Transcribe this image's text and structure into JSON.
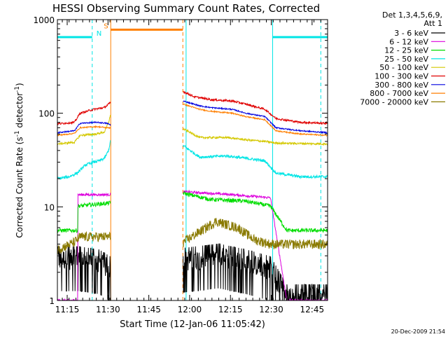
{
  "chart_data": {
    "type": "line",
    "title": "HESSI Observing Summary Count Rates, Corrected",
    "xlabel": "Start Time (12-Jan-06 11:05:42)",
    "ylabel_main": "Corrected Count Rate (s",
    "ylabel_sup1": "-1",
    "ylabel_mid": " detector",
    "ylabel_sup2": "-1",
    "ylabel_end": ")",
    "yscale": "log",
    "ylim": [
      1,
      1000
    ],
    "xlim": [
      5.7,
      105
    ],
    "x_unit": "minutes after 11:05:42",
    "y_tick_labels": [
      "1",
      "10",
      "100",
      "1000"
    ],
    "x_ticks": [
      {
        "value": 9.3,
        "label": "11:15"
      },
      {
        "value": 24.3,
        "label": "11:30"
      },
      {
        "value": 39.3,
        "label": "11:45"
      },
      {
        "value": 54.3,
        "label": "12:00"
      },
      {
        "value": 69.3,
        "label": "12:15"
      },
      {
        "value": 84.3,
        "label": "12:30"
      },
      {
        "value": 99.3,
        "label": "12:45"
      }
    ],
    "legend": {
      "placement": "right",
      "header": [
        "Det 1,3,4,5,6,9,",
        "Att 1"
      ],
      "entries": [
        {
          "label": "3 - 6 keV",
          "color": "#000000"
        },
        {
          "label": "6 - 12 keV",
          "color": "#dd00dd"
        },
        {
          "label": "12 - 25 keV",
          "color": "#00dd00"
        },
        {
          "label": "25 - 50 keV",
          "color": "#00e5e5"
        },
        {
          "label": "50 - 100 keV",
          "color": "#d4c800"
        },
        {
          "label": "100 - 300 keV",
          "color": "#e00000"
        },
        {
          "label": "300 - 800 keV",
          "color": "#0000e0"
        },
        {
          "label": "800 - 7000 keV",
          "color": "#ff7f00"
        },
        {
          "label": "7000 - 20000 keV",
          "color": "#8a7a00"
        }
      ]
    },
    "data_gaps": [
      [
        25.3,
        51.8
      ]
    ],
    "series": [
      {
        "band": "3 - 6 keV",
        "color": "#000000",
        "noise": 0.25,
        "points": [
          [
            5.7,
            2.8
          ],
          [
            13.5,
            2.8
          ],
          [
            13.5,
            2.8
          ],
          [
            21,
            2.6
          ],
          [
            25,
            2.2
          ],
          [
            52,
            2.7
          ],
          [
            65,
            3.0
          ],
          [
            75,
            2.6
          ],
          [
            84,
            2.2
          ],
          [
            90,
            1.1
          ],
          [
            95,
            1.1
          ],
          [
            105,
            1.1
          ]
        ]
      },
      {
        "band": "6 - 12 keV",
        "color": "#dd00dd",
        "noise": 0.03,
        "points": [
          [
            5.7,
            1.0
          ],
          [
            13.2,
            1.0
          ],
          [
            13.2,
            13.5
          ],
          [
            25,
            13.5
          ],
          [
            52,
            14.5
          ],
          [
            70,
            13.5
          ],
          [
            84,
            12.5
          ],
          [
            90,
            1.0
          ],
          [
            105,
            1.0
          ]
        ]
      },
      {
        "band": "12 - 25 keV",
        "color": "#00dd00",
        "noise": 0.05,
        "points": [
          [
            5.7,
            5.6
          ],
          [
            13.2,
            5.6
          ],
          [
            13.2,
            10.2
          ],
          [
            25,
            11.0
          ],
          [
            52,
            14.0
          ],
          [
            62,
            12.0
          ],
          [
            75,
            11.5
          ],
          [
            84,
            10.2
          ],
          [
            90,
            5.6
          ],
          [
            105,
            5.6
          ]
        ]
      },
      {
        "band": "25 - 50 keV",
        "color": "#00e5e5",
        "noise": 0.035,
        "points": [
          [
            5.7,
            20.0
          ],
          [
            10,
            21.0
          ],
          [
            13,
            23.0
          ],
          [
            16,
            28.0
          ],
          [
            19,
            30.0
          ],
          [
            21,
            31.0
          ],
          [
            23,
            33.0
          ],
          [
            24.5,
            40.0
          ],
          [
            25.2,
            50.0
          ],
          [
            52,
            45.0
          ],
          [
            58,
            34.0
          ],
          [
            68,
            35.0
          ],
          [
            75,
            33.0
          ],
          [
            82,
            31.0
          ],
          [
            86,
            23.0
          ],
          [
            95,
            21.0
          ],
          [
            105,
            21.0
          ]
        ]
      },
      {
        "band": "50 - 100 keV",
        "color": "#d4c800",
        "noise": 0.025,
        "points": [
          [
            5.7,
            47.0
          ],
          [
            12,
            49.0
          ],
          [
            14,
            58.0
          ],
          [
            20,
            60.0
          ],
          [
            23,
            63.0
          ],
          [
            24.5,
            80.0
          ],
          [
            25.2,
            95.0
          ],
          [
            52,
            68.0
          ],
          [
            58,
            55.0
          ],
          [
            68,
            55.0
          ],
          [
            75,
            52.0
          ],
          [
            82,
            50.0
          ],
          [
            86,
            48.0
          ],
          [
            105,
            47.0
          ]
        ]
      },
      {
        "band": "100 - 300 keV",
        "color": "#e00000",
        "noise": 0.025,
        "points": [
          [
            5.7,
            77.0
          ],
          [
            12,
            80.0
          ],
          [
            14,
            100.0
          ],
          [
            19,
            110.0
          ],
          [
            23,
            115.0
          ],
          [
            25.2,
            130.0
          ],
          [
            52,
            170.0
          ],
          [
            56,
            150.0
          ],
          [
            62,
            140.0
          ],
          [
            70,
            135.0
          ],
          [
            75,
            125.0
          ],
          [
            82,
            110.0
          ],
          [
            86,
            88.0
          ],
          [
            95,
            80.0
          ],
          [
            105,
            78.0
          ]
        ]
      },
      {
        "band": "300 - 800 keV",
        "color": "#0000e0",
        "noise": 0.015,
        "points": [
          [
            5.7,
            62.0
          ],
          [
            12,
            65.0
          ],
          [
            14,
            78.0
          ],
          [
            20,
            80.0
          ],
          [
            24,
            78.0
          ],
          [
            25.2,
            75.0
          ],
          [
            52,
            135.0
          ],
          [
            58,
            120.0
          ],
          [
            62,
            115.0
          ],
          [
            70,
            110.0
          ],
          [
            75,
            100.0
          ],
          [
            82,
            92.0
          ],
          [
            86,
            70.0
          ],
          [
            95,
            65.0
          ],
          [
            105,
            62.0
          ]
        ]
      },
      {
        "band": "800 - 7000 keV",
        "color": "#ff7f00",
        "noise": 0.015,
        "points": [
          [
            5.7,
            58.0
          ],
          [
            12,
            61.0
          ],
          [
            14,
            70.0
          ],
          [
            20,
            72.0
          ],
          [
            24,
            70.0
          ],
          [
            25.2,
            70.0
          ],
          [
            52,
            125.0
          ],
          [
            58,
            110.0
          ],
          [
            62,
            105.0
          ],
          [
            70,
            100.0
          ],
          [
            75,
            92.0
          ],
          [
            82,
            85.0
          ],
          [
            86,
            65.0
          ],
          [
            95,
            60.0
          ],
          [
            105,
            58.0
          ]
        ]
      },
      {
        "band": "7000 - 20000 keV",
        "color": "#8a7a00",
        "noise": 0.12,
        "points": [
          [
            5.7,
            3.5
          ],
          [
            12,
            4.2
          ],
          [
            14,
            4.8
          ],
          [
            25,
            4.8
          ],
          [
            52,
            4.2
          ],
          [
            56,
            5.0
          ],
          [
            64,
            7.0
          ],
          [
            72,
            6.0
          ],
          [
            78,
            4.5
          ],
          [
            84,
            4.0
          ],
          [
            90,
            4.0
          ],
          [
            105,
            4.0
          ]
        ]
      }
    ],
    "annotations": [
      {
        "type": "interval",
        "label": "N",
        "start": 5.7,
        "end": 18.5,
        "level": 650,
        "color": "#00e5e5"
      },
      {
        "type": "interval",
        "label": "S",
        "start": 25.3,
        "end": 51.8,
        "level": 780,
        "color": "#ff7f00"
      },
      {
        "type": "interval",
        "label": "",
        "start": 84.8,
        "end": 105,
        "level": 650,
        "color": "#00e5e5"
      },
      {
        "type": "vline",
        "x": 18.5,
        "style": "dashed",
        "color": "#00e5e5"
      },
      {
        "type": "vline",
        "x": 25.3,
        "style": "solid",
        "color": "#ff7f00"
      },
      {
        "type": "vline",
        "x": 51.8,
        "style": "dashed",
        "color": "#ff7f00"
      },
      {
        "type": "vline",
        "x": 53.0,
        "style": "solid",
        "color": "#00e5e5"
      },
      {
        "type": "vline",
        "x": 84.8,
        "style": "solid",
        "color": "#00e5e5"
      },
      {
        "type": "vline",
        "x": 102.5,
        "style": "dashed",
        "color": "#00e5e5"
      }
    ]
  },
  "footer": {
    "timestamp": "20-Dec-2009 21:54"
  }
}
